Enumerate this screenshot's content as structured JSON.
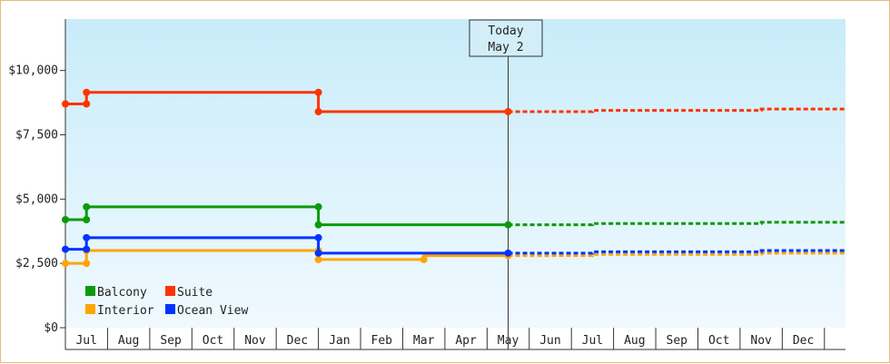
{
  "chart_data": {
    "type": "line",
    "title": "",
    "xlabel": "",
    "ylabel": "",
    "x_categories": [
      "Jul",
      "Aug",
      "Sep",
      "Oct",
      "Nov",
      "Dec",
      "Jan",
      "Feb",
      "Mar",
      "Apr",
      "May",
      "Jun",
      "Jul",
      "Aug",
      "Sep",
      "Oct",
      "Nov",
      "Dec"
    ],
    "x_range": [
      5.5,
      24
    ],
    "ylim": [
      0,
      12000
    ],
    "y_ticks": [
      0,
      2500,
      5000,
      7500,
      10000
    ],
    "y_tick_labels": [
      "$0",
      "$2,500",
      "$5,000",
      "$7,500",
      "$10,000"
    ],
    "grid": false,
    "legend_placement": "bottom-left",
    "today": {
      "line1": "Today",
      "line2": "May 2",
      "x": 16.0
    },
    "series": [
      {
        "name": "Balcony",
        "color": "#0a9a0a",
        "points": [
          [
            5.5,
            4200
          ],
          [
            6.0,
            4200
          ],
          [
            6.0,
            4700
          ],
          [
            11.5,
            4700
          ],
          [
            11.5,
            4000
          ],
          [
            16.0,
            4000
          ]
        ],
        "markers": [
          [
            5.5,
            4200
          ],
          [
            6.0,
            4200
          ],
          [
            6.0,
            4700
          ],
          [
            11.5,
            4700
          ],
          [
            11.5,
            4000
          ],
          [
            16.0,
            4000
          ]
        ],
        "forecast": [
          [
            16.0,
            4000
          ],
          [
            18.0,
            4000
          ],
          [
            18.0,
            4050
          ],
          [
            22.0,
            4050
          ],
          [
            22.0,
            4100
          ],
          [
            24.0,
            4100
          ]
        ]
      },
      {
        "name": "Suite",
        "color": "#ff3300",
        "points": [
          [
            5.5,
            8700
          ],
          [
            6.0,
            8700
          ],
          [
            6.0,
            9150
          ],
          [
            11.5,
            9150
          ],
          [
            11.5,
            8400
          ],
          [
            16.0,
            8400
          ]
        ],
        "markers": [
          [
            5.5,
            8700
          ],
          [
            6.0,
            8700
          ],
          [
            6.0,
            9150
          ],
          [
            11.5,
            9150
          ],
          [
            11.5,
            8400
          ],
          [
            16.0,
            8400
          ]
        ],
        "forecast": [
          [
            16.0,
            8400
          ],
          [
            18.0,
            8400
          ],
          [
            18.0,
            8450
          ],
          [
            22.0,
            8450
          ],
          [
            22.0,
            8500
          ],
          [
            24.0,
            8500
          ]
        ]
      },
      {
        "name": "Interior",
        "color": "#ffa500",
        "points": [
          [
            5.5,
            2500
          ],
          [
            6.0,
            2500
          ],
          [
            6.0,
            3000
          ],
          [
            11.5,
            3000
          ],
          [
            11.5,
            2650
          ],
          [
            14.0,
            2650
          ],
          [
            14.0,
            2800
          ],
          [
            16.0,
            2800
          ]
        ],
        "markers": [
          [
            5.5,
            2500
          ],
          [
            6.0,
            2500
          ],
          [
            6.0,
            3000
          ],
          [
            11.5,
            3000
          ],
          [
            11.5,
            2650
          ],
          [
            14.0,
            2650
          ],
          [
            16.0,
            2800
          ]
        ],
        "forecast": [
          [
            16.0,
            2800
          ],
          [
            18.0,
            2800
          ],
          [
            18.0,
            2850
          ],
          [
            22.0,
            2850
          ],
          [
            22.0,
            2900
          ],
          [
            24.0,
            2900
          ]
        ]
      },
      {
        "name": "Ocean View",
        "color": "#0033ff",
        "points": [
          [
            5.5,
            3050
          ],
          [
            6.0,
            3050
          ],
          [
            6.0,
            3500
          ],
          [
            11.5,
            3500
          ],
          [
            11.5,
            2900
          ],
          [
            16.0,
            2900
          ]
        ],
        "markers": [
          [
            5.5,
            3050
          ],
          [
            6.0,
            3050
          ],
          [
            6.0,
            3500
          ],
          [
            11.5,
            3500
          ],
          [
            11.5,
            2900
          ],
          [
            16.0,
            2900
          ]
        ],
        "forecast": [
          [
            16.0,
            2900
          ],
          [
            18.0,
            2900
          ],
          [
            18.0,
            2950
          ],
          [
            22.0,
            2950
          ],
          [
            22.0,
            3000
          ],
          [
            24.0,
            3000
          ]
        ]
      }
    ]
  }
}
